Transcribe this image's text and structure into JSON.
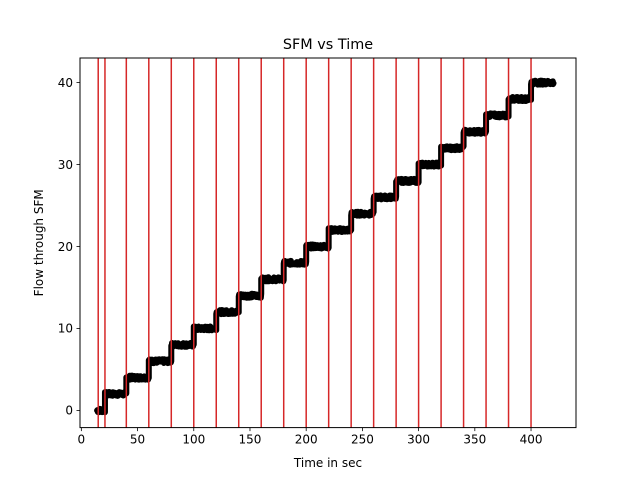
{
  "chart_data": {
    "type": "line",
    "title": "SFM vs Time",
    "xlabel": "Time in sec",
    "ylabel": "Flow through SFM",
    "xlim": [
      -1.2,
      440
    ],
    "ylim": [
      -2.1,
      43
    ],
    "xticks": [
      0,
      50,
      100,
      150,
      200,
      250,
      300,
      350,
      400
    ],
    "yticks": [
      0,
      10,
      20,
      30,
      40
    ],
    "grid": false,
    "vertical_lines": {
      "color": "#d62728",
      "x": [
        15,
        21,
        40,
        60,
        80,
        100,
        120,
        140,
        160,
        180,
        200,
        220,
        240,
        260,
        280,
        300,
        320,
        340,
        360,
        380,
        400
      ]
    },
    "series": [
      {
        "color": "#000000",
        "steps": [
          {
            "x": [
              14,
              21
            ],
            "y": 0
          },
          {
            "x": [
              21,
              40
            ],
            "y": 2
          },
          {
            "x": [
              40,
              60
            ],
            "y": 4
          },
          {
            "x": [
              60,
              80
            ],
            "y": 6
          },
          {
            "x": [
              80,
              100
            ],
            "y": 8
          },
          {
            "x": [
              100,
              120
            ],
            "y": 10
          },
          {
            "x": [
              120,
              140
            ],
            "y": 12
          },
          {
            "x": [
              140,
              160
            ],
            "y": 14
          },
          {
            "x": [
              160,
              180
            ],
            "y": 16
          },
          {
            "x": [
              180,
              200
            ],
            "y": 18
          },
          {
            "x": [
              200,
              220
            ],
            "y": 20
          },
          {
            "x": [
              220,
              240
            ],
            "y": 22
          },
          {
            "x": [
              240,
              260
            ],
            "y": 24
          },
          {
            "x": [
              260,
              280
            ],
            "y": 26
          },
          {
            "x": [
              280,
              300
            ],
            "y": 28
          },
          {
            "x": [
              300,
              320
            ],
            "y": 30
          },
          {
            "x": [
              320,
              340
            ],
            "y": 32
          },
          {
            "x": [
              340,
              360
            ],
            "y": 34
          },
          {
            "x": [
              360,
              380
            ],
            "y": 36
          },
          {
            "x": [
              380,
              400
            ],
            "y": 38
          },
          {
            "x": [
              400,
              420
            ],
            "y": 40
          }
        ]
      }
    ]
  }
}
